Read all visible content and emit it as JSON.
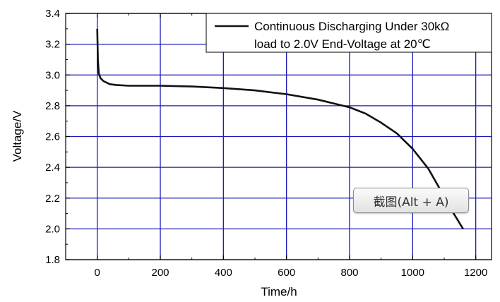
{
  "chart_data": {
    "type": "line",
    "xlabel": "Time/h",
    "ylabel": "Voltage/V",
    "xlim": [
      -100,
      1250
    ],
    "ylim": [
      1.8,
      3.4
    ],
    "x_ticks": [
      0,
      200,
      400,
      600,
      800,
      1000,
      1200
    ],
    "y_ticks": [
      1.8,
      2.0,
      2.2,
      2.4,
      2.6,
      2.8,
      3.0,
      3.2,
      3.4
    ],
    "x_tick_labels": [
      "0",
      "200",
      "400",
      "600",
      "800",
      "1000",
      "1200"
    ],
    "y_tick_labels": [
      "1.8",
      "2.0",
      "2.2",
      "2.4",
      "2.6",
      "2.8",
      "3.0",
      "3.2",
      "3.4"
    ],
    "grid": true,
    "grid_color": "#1a1ab8",
    "line_color": "#111111",
    "legend_position": "top-right",
    "legend_lines": [
      "Continuous Discharging Under 30kΩ",
      "load to 2.0V End-Voltage at 20℃"
    ],
    "series": [
      {
        "x": [
          0,
          2,
          5,
          10,
          20,
          40,
          60,
          100,
          200,
          300,
          400,
          500,
          600,
          700,
          800,
          850,
          900,
          950,
          1000,
          1050,
          1100,
          1130,
          1160
        ],
        "y": [
          3.3,
          3.1,
          3.01,
          2.98,
          2.96,
          2.94,
          2.935,
          2.93,
          2.93,
          2.925,
          2.915,
          2.9,
          2.875,
          2.84,
          2.79,
          2.75,
          2.69,
          2.62,
          2.52,
          2.39,
          2.21,
          2.1,
          2.0
        ]
      }
    ]
  },
  "overlay_button": {
    "label": "截图(Alt + A)"
  }
}
